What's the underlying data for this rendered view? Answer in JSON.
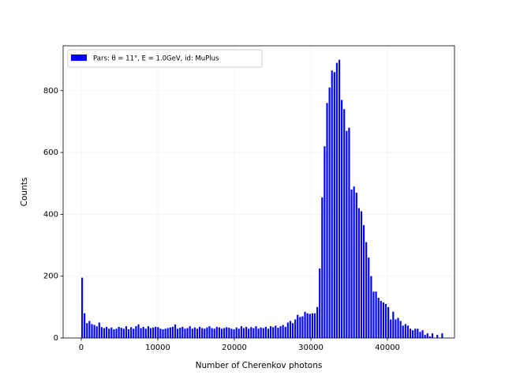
{
  "chart_data": {
    "type": "histogram",
    "xlabel": "Number of Cherenkov photons",
    "ylabel": "Counts",
    "series": [
      {
        "name": "Pars: θ = 11°, E = 1.0GeV, id: MuPlus",
        "color": "#0000ff",
        "bins": [
          0,
          320,
          640,
          960,
          1280,
          1600,
          1920,
          2240,
          2560,
          2880,
          3200,
          3520,
          3840,
          4160,
          4480,
          4800,
          5120,
          5440,
          5760,
          6080,
          6400,
          6720,
          7040,
          7360,
          7680,
          8000,
          8320,
          8640,
          8960,
          9280,
          9600,
          9920,
          10240,
          10560,
          10880,
          11200,
          11520,
          11840,
          12160,
          12480,
          12800,
          13120,
          13440,
          13760,
          14080,
          14400,
          14720,
          15040,
          15360,
          15680,
          16000,
          16320,
          16640,
          16960,
          17280,
          17600,
          17920,
          18240,
          18560,
          18880,
          19200,
          19520,
          19840,
          20160,
          20480,
          20800,
          21120,
          21440,
          21760,
          22080,
          22400,
          22720,
          23040,
          23360,
          23680,
          24000,
          24320,
          24640,
          24960,
          25280,
          25600,
          25920,
          26240,
          26560,
          26880,
          27200,
          27520,
          27840,
          28160,
          28480,
          28800,
          29120,
          29440,
          29760,
          30080,
          30400,
          30720,
          31040,
          31360,
          31680,
          32000,
          32320,
          32640,
          32960,
          33280,
          33600,
          33920,
          34240,
          34560,
          34880,
          35200,
          35520,
          35840,
          36160,
          36480,
          36800,
          37120,
          37440,
          37760,
          38080,
          38400,
          38720,
          39040,
          39360,
          39680,
          40000,
          40320,
          40640,
          40960,
          41280,
          41600,
          41920,
          42240,
          42560,
          42880,
          43200,
          43520,
          43840,
          44160,
          44480,
          44800,
          45120,
          45440,
          45760,
          46080,
          46400,
          46720,
          47040,
          47360
        ],
        "values": [
          195,
          80,
          48,
          55,
          45,
          42,
          38,
          50,
          35,
          32,
          36,
          30,
          34,
          28,
          30,
          36,
          33,
          30,
          38,
          28,
          35,
          30,
          38,
          44,
          32,
          36,
          30,
          38,
          32,
          34,
          36,
          35,
          30,
          28,
          30,
          32,
          34,
          36,
          44,
          30,
          33,
          36,
          30,
          32,
          38,
          30,
          34,
          30,
          36,
          32,
          30,
          34,
          38,
          32,
          30,
          36,
          34,
          30,
          32,
          35,
          33,
          30,
          28,
          34,
          30,
          38,
          32,
          36,
          30,
          35,
          32,
          38,
          30,
          34,
          32,
          36,
          30,
          38,
          35,
          40,
          33,
          38,
          42,
          36,
          50,
          55,
          48,
          60,
          75,
          68,
          70,
          85,
          80,
          78,
          80,
          80,
          100,
          225,
          455,
          620,
          760,
          810,
          865,
          860,
          890,
          900,
          770,
          740,
          670,
          680,
          480,
          490,
          470,
          420,
          410,
          365,
          310,
          260,
          200,
          150,
          150,
          130,
          120,
          115,
          110,
          100,
          60,
          85,
          60,
          65,
          55,
          40,
          45,
          40,
          30,
          25,
          30,
          30,
          20,
          25,
          10,
          15,
          5,
          15,
          0,
          10,
          0,
          15
        ]
      }
    ],
    "xlim": [
      -2370,
      48760
    ],
    "ylim": [
      0,
      945
    ],
    "xticks": [
      0,
      10000,
      20000,
      30000,
      40000
    ],
    "yticks": [
      0,
      200,
      400,
      600,
      800
    ],
    "grid": true,
    "legend": "upper left"
  }
}
